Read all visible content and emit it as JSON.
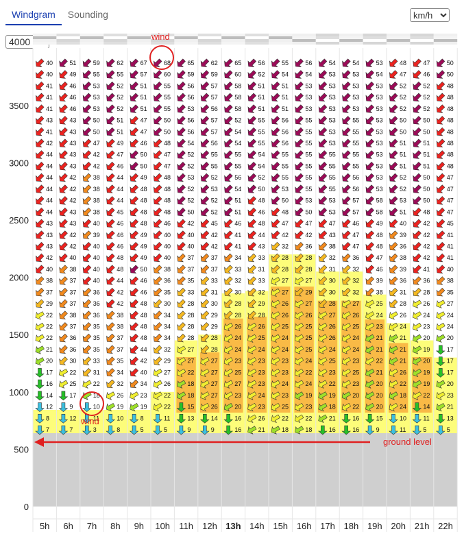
{
  "tabs": [
    {
      "label": "Windgram",
      "active": true
    },
    {
      "label": "Sounding",
      "active": false
    }
  ],
  "unit_select": {
    "value": "km/h"
  },
  "altitude_select": {
    "value": "4000"
  },
  "annotations": {
    "wind_top": "wind",
    "wind_bottom": "wind",
    "ground": "ground level"
  },
  "colors": {
    "speed_low": "#27c028",
    "speed_mid": "#f0ee30",
    "speed_high": "#f28a1e",
    "speed_very_high": "#ec2320",
    "speed_extreme": "#9c0b58",
    "thermal_yellow": "#fdfd7a",
    "thermal_orange": "#f7a93a",
    "ground_grey": "#cfcfcf",
    "annotation_red": "#e02020"
  },
  "chart_data": {
    "type": "heatmap",
    "title": "",
    "xlabel": "",
    "ylabel": "",
    "ground_level": 640,
    "y_ticks": [
      0,
      500,
      1000,
      1500,
      2000,
      2500,
      3000,
      3500
    ],
    "ylim": [
      0,
      4000
    ],
    "hours": [
      "5h",
      "6h",
      "7h",
      "8h",
      "9h",
      "10h",
      "11h",
      "12h",
      "13h",
      "14h",
      "15h",
      "16h",
      "17h",
      "18h",
      "19h",
      "20h",
      "21h",
      "22h"
    ],
    "current_hour": "13h",
    "levels": [
      640,
      740,
      840,
      940,
      1040,
      1140,
      1240,
      1340,
      1440,
      1540,
      1640,
      1740,
      1840,
      1940,
      2040,
      2140,
      2240,
      2340,
      2440,
      2540,
      2640,
      2740,
      2840,
      2940,
      3040,
      3140,
      3240,
      3340,
      3440,
      3540,
      3640,
      3740,
      3840
    ],
    "thermal_top": [
      0,
      0,
      0,
      0,
      0,
      1000,
      1450,
      1500,
      1860,
      1880,
      2200,
      2200,
      2050,
      2050,
      1850,
      1600,
      1450,
      1300
    ],
    "wind_speed": [
      [
        7,
        7,
        3,
        8,
        5,
        5,
        9,
        9,
        16,
        21,
        18,
        18,
        16,
        16,
        9,
        11,
        5,
        5
      ],
      [
        8,
        12,
        11,
        10,
        8,
        11,
        13,
        14,
        16,
        26,
        22,
        22,
        21,
        16,
        15,
        10,
        11,
        13
      ],
      [
        12,
        9,
        10,
        19,
        19,
        22,
        15,
        26,
        20,
        23,
        25,
        23,
        18,
        22,
        20,
        24,
        14,
        21
      ],
      [
        14,
        17,
        18,
        26,
        23,
        22,
        18,
        27,
        23,
        24,
        23,
        19,
        19,
        20,
        20,
        18,
        22,
        23
      ],
      [
        16,
        25,
        22,
        32,
        34,
        26,
        18,
        27,
        27,
        23,
        24,
        24,
        22,
        23,
        20,
        22,
        19,
        20
      ],
      [
        17,
        22,
        31,
        34,
        40,
        27,
        22,
        27,
        25,
        23,
        23,
        22,
        23,
        25,
        21,
        26,
        19,
        17
      ],
      [
        20,
        30,
        33,
        35,
        42,
        29,
        27,
        27,
        23,
        23,
        23,
        24,
        25,
        23,
        22,
        21,
        20,
        17
      ],
      [
        21,
        36,
        35,
        37,
        44,
        32,
        27,
        28,
        24,
        24,
        24,
        25,
        24,
        24,
        21,
        21,
        19,
        17
      ],
      [
        22,
        36,
        35,
        37,
        48,
        34,
        28,
        28,
        24,
        25,
        24,
        25,
        26,
        24,
        21,
        21,
        20,
        20
      ],
      [
        22,
        37,
        35,
        38,
        48,
        34,
        28,
        29,
        26,
        26,
        25,
        25,
        26,
        25,
        23,
        24,
        23,
        24
      ],
      [
        22,
        38,
        36,
        38,
        48,
        34,
        28,
        29,
        28,
        28,
        26,
        26,
        27,
        26,
        24,
        26,
        24,
        24
      ],
      [
        29,
        37,
        36,
        42,
        48,
        30,
        28,
        30,
        28,
        29,
        26,
        27,
        28,
        27,
        25,
        28,
        26,
        27
      ],
      [
        37,
        37,
        36,
        42,
        46,
        35,
        33,
        31,
        30,
        32,
        27,
        29,
        30,
        32,
        38,
        31,
        28,
        35
      ],
      [
        38,
        37,
        40,
        44,
        46,
        36,
        35,
        33,
        32,
        33,
        27,
        27,
        30,
        32,
        39,
        36,
        36,
        38
      ],
      [
        40,
        38,
        40,
        48,
        50,
        38,
        37,
        37,
        33,
        31,
        28,
        28,
        31,
        32,
        46,
        39,
        41,
        40
      ],
      [
        42,
        40,
        40,
        48,
        49,
        40,
        37,
        37,
        34,
        33,
        28,
        28,
        32,
        36,
        47,
        38,
        42,
        41
      ],
      [
        43,
        42,
        40,
        46,
        49,
        40,
        40,
        42,
        41,
        43,
        32,
        36,
        38,
        47,
        48,
        36,
        42,
        41
      ],
      [
        43,
        42,
        39,
        46,
        49,
        40,
        40,
        42,
        41,
        44,
        42,
        42,
        43,
        47,
        48,
        39,
        42,
        41
      ],
      [
        43,
        43,
        40,
        46,
        48,
        46,
        42,
        45,
        46,
        48,
        47,
        47,
        47,
        46,
        49,
        40,
        42,
        45
      ],
      [
        44,
        43,
        38,
        45,
        48,
        48,
        50,
        52,
        51,
        46,
        48,
        50,
        53,
        57,
        58,
        51,
        48,
        47
      ],
      [
        44,
        42,
        38,
        44,
        48,
        48,
        52,
        52,
        51,
        48,
        50,
        53,
        53,
        57,
        58,
        53,
        50,
        47
      ],
      [
        44,
        42,
        38,
        44,
        48,
        48,
        52,
        53,
        54,
        50,
        53,
        55,
        55,
        56,
        53,
        52,
        50,
        47
      ],
      [
        44,
        42,
        38,
        44,
        49,
        48,
        53,
        52,
        56,
        52,
        55,
        55,
        55,
        56,
        53,
        52,
        50,
        47
      ],
      [
        44,
        43,
        42,
        46,
        50,
        47,
        52,
        55,
        55,
        54,
        55,
        55,
        55,
        55,
        53,
        51,
        51,
        48
      ],
      [
        44,
        43,
        42,
        47,
        50,
        47,
        52,
        55,
        55,
        54,
        55,
        55,
        55,
        55,
        53,
        51,
        51,
        48
      ],
      [
        42,
        43,
        47,
        49,
        46,
        48,
        54,
        56,
        54,
        55,
        56,
        55,
        53,
        55,
        53,
        51,
        51,
        48
      ],
      [
        41,
        43,
        50,
        51,
        47,
        50,
        56,
        57,
        54,
        55,
        56,
        55,
        53,
        55,
        53,
        50,
        50,
        48
      ],
      [
        43,
        43,
        50,
        51,
        47,
        50,
        56,
        57,
        52,
        55,
        56,
        55,
        53,
        55,
        53,
        50,
        50,
        48
      ],
      [
        41,
        46,
        53,
        52,
        51,
        55,
        53,
        56,
        58,
        51,
        51,
        53,
        53,
        53,
        53,
        52,
        52,
        48
      ],
      [
        41,
        46,
        53,
        52,
        51,
        55,
        56,
        57,
        58,
        51,
        51,
        53,
        53,
        53,
        53,
        52,
        52,
        48
      ],
      [
        41,
        46,
        53,
        52,
        51,
        55,
        56,
        57,
        58,
        51,
        51,
        53,
        53,
        53,
        53,
        52,
        52,
        48
      ],
      [
        40,
        49,
        55,
        55,
        57,
        60,
        59,
        59,
        60,
        52,
        54,
        54,
        53,
        53,
        54,
        47,
        46,
        50
      ],
      [
        40,
        51,
        59,
        62,
        67,
        68,
        65,
        62,
        65,
        56,
        55,
        56,
        54,
        54,
        53,
        48,
        47,
        50
      ]
    ]
  }
}
